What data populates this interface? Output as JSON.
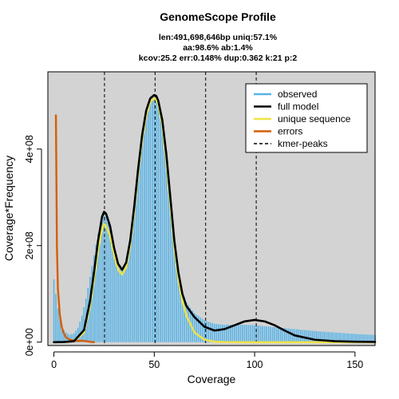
{
  "chart_data": {
    "type": "area",
    "title": "GenomeScope Profile",
    "subtitle_lines": [
      "len:491,698,646bp uniq:57.1%",
      "aa:98.6% ab:1.4%",
      "kcov:25.2 err:0.148%  dup:0.362  k:21 p:2"
    ],
    "xlabel": "Coverage",
    "ylabel": "Coverage*Frequency",
    "xlim": [
      -3,
      160
    ],
    "ylim": [
      -7000000.0,
      560000000.0
    ],
    "x_ticks": [
      0,
      50,
      100,
      150
    ],
    "x_tick_labels": [
      "0",
      "50",
      "100",
      "150"
    ],
    "y_ticks": [
      0,
      200000000,
      400000000
    ],
    "y_tick_labels": [
      "0e+00",
      "2e+08",
      "4e+08"
    ],
    "kmer_peaks": [
      25.2,
      50.4,
      75.6,
      100.8
    ],
    "legend": {
      "position": "top-right",
      "entries": [
        {
          "label": "observed",
          "color": "#56B4E9",
          "style": "solid"
        },
        {
          "label": "full model",
          "color": "#000000",
          "style": "solid"
        },
        {
          "label": "unique sequence",
          "color": "#F0E442",
          "style": "solid"
        },
        {
          "label": "errors",
          "color": "#D55E00",
          "style": "solid"
        },
        {
          "label": "kmer-peaks",
          "color": "#000000",
          "style": "dashed"
        }
      ]
    },
    "series": [
      {
        "name": "full model",
        "color": "#000000",
        "x": [
          0,
          5,
          10,
          15,
          18,
          20,
          22,
          24,
          25,
          26,
          28,
          30,
          32,
          34,
          36,
          38,
          40,
          42,
          44,
          46,
          48,
          50,
          51,
          52,
          54,
          56,
          58,
          60,
          62,
          64,
          66,
          70,
          75,
          80,
          85,
          90,
          95,
          100,
          105,
          110,
          115,
          120,
          130,
          140,
          150,
          160
        ],
        "y": [
          0,
          300000.0,
          2000000.0,
          25000000.0,
          85000000.0,
          145000000.0,
          210000000.0,
          260000000.0,
          270000000.0,
          266000000.0,
          240000000.0,
          195000000.0,
          162000000.0,
          150000000.0,
          165000000.0,
          210000000.0,
          280000000.0,
          360000000.0,
          430000000.0,
          480000000.0,
          505000000.0,
          512000000.0,
          510000000.0,
          500000000.0,
          460000000.0,
          390000000.0,
          300000000.0,
          210000000.0,
          145000000.0,
          100000000.0,
          75000000.0,
          52000000.0,
          32000000.0,
          24000000.0,
          27000000.0,
          35000000.0,
          43000000.0,
          46000000.0,
          43000000.0,
          35000000.0,
          24000000.0,
          14000000.0,
          5000000.0,
          2000000.0,
          1000000.0,
          500000.0
        ]
      },
      {
        "name": "unique sequence",
        "color": "#F0E442",
        "x": [
          0,
          5,
          10,
          15,
          18,
          20,
          22,
          24,
          25,
          26,
          28,
          30,
          32,
          34,
          36,
          38,
          40,
          42,
          44,
          46,
          48,
          50,
          51,
          52,
          54,
          56,
          58,
          60,
          62,
          64,
          66,
          70,
          75,
          80,
          85,
          90,
          100,
          110,
          120,
          140,
          160
        ],
        "y": [
          0,
          200000.0,
          2000000.0,
          20000000.0,
          75000000.0,
          130000000.0,
          190000000.0,
          235000000.0,
          245000000.0,
          240000000.0,
          220000000.0,
          180000000.0,
          150000000.0,
          140000000.0,
          155000000.0,
          200000000.0,
          270000000.0,
          350000000.0,
          420000000.0,
          470000000.0,
          498000000.0,
          505000000.0,
          502000000.0,
          492000000.0,
          450000000.0,
          375000000.0,
          285000000.0,
          195000000.0,
          130000000.0,
          85000000.0,
          55000000.0,
          20000000.0,
          5000000.0,
          1000000.0,
          300000.0,
          100000.0,
          0,
          0,
          0,
          0,
          0
        ]
      },
      {
        "name": "errors",
        "color": "#D55E00",
        "x": [
          1,
          1.5,
          2,
          3,
          4,
          5,
          6,
          8,
          10,
          12,
          14,
          16,
          18,
          20
        ],
        "y": [
          470000000.0,
          200000000.0,
          110000000.0,
          55000000.0,
          30000000.0,
          18000000.0,
          10000000.0,
          5000000.0,
          3000000.0,
          2500000.0,
          3000000.0,
          2000000.0,
          800000.0,
          0
        ]
      }
    ],
    "observed": {
      "name": "observed",
      "color": "#56B4E9",
      "x": [
        0,
        1,
        2,
        3,
        4,
        5,
        6,
        8,
        10,
        12,
        14,
        16,
        18,
        20,
        22,
        24,
        25,
        26,
        28,
        30,
        32,
        34,
        36,
        38,
        40,
        42,
        44,
        46,
        48,
        50,
        51,
        52,
        54,
        56,
        58,
        60,
        62,
        64,
        66,
        70,
        75,
        80,
        85,
        90,
        95,
        100,
        105,
        110,
        115,
        120,
        130,
        140,
        150,
        160
      ],
      "y": [
        130000000.0,
        100000000.0,
        70000000.0,
        50000000.0,
        35000000.0,
        25000000.0,
        20000000.0,
        15000000.0,
        18000000.0,
        30000000.0,
        55000000.0,
        90000000.0,
        135000000.0,
        180000000.0,
        225000000.0,
        260000000.0,
        265000000.0,
        260000000.0,
        235000000.0,
        195000000.0,
        162000000.0,
        150000000.0,
        165000000.0,
        210000000.0,
        280000000.0,
        360000000.0,
        430000000.0,
        480000000.0,
        502000000.0,
        508000000.0,
        505000000.0,
        495000000.0,
        455000000.0,
        385000000.0,
        295000000.0,
        205000000.0,
        145000000.0,
        105000000.0,
        82000000.0,
        60000000.0,
        45000000.0,
        38000000.0,
        36000000.0,
        36000000.0,
        36000000.0,
        35000000.0,
        33000000.0,
        31000000.0,
        29000000.0,
        27000000.0,
        23000000.0,
        20000000.0,
        17000000.0,
        15000000.0
      ]
    }
  }
}
